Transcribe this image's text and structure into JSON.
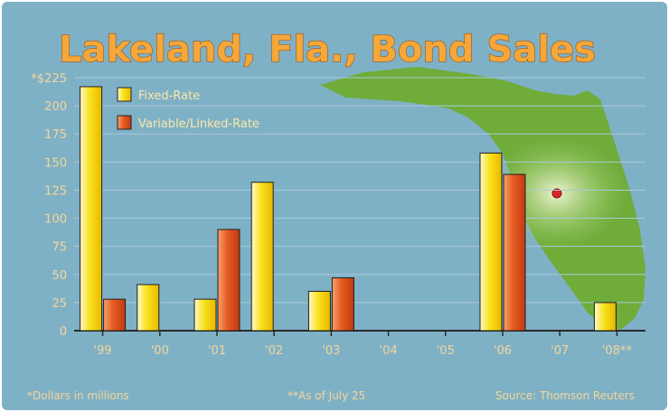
{
  "chart_data": {
    "type": "bar",
    "title": "Lakeland, Fla., Bond Sales",
    "ylabel": "*$225",
    "ylim": [
      0,
      225
    ],
    "yticks": [
      "0",
      "25",
      "50",
      "75",
      "100",
      "125",
      "150",
      "175",
      "200",
      "*$225"
    ],
    "categories": [
      "'99",
      "'00",
      "'01",
      "'02",
      "'03",
      "'04",
      "'05",
      "'06",
      "'07",
      "'08**"
    ],
    "series": [
      {
        "name": "Fixed-Rate",
        "color": "#f5d90a",
        "values": [
          217,
          41,
          28,
          132,
          35,
          0,
          0,
          158,
          0,
          25
        ]
      },
      {
        "name": "Variable/Linked-Rate",
        "color": "#e0521e",
        "values": [
          28,
          0,
          90,
          0,
          47,
          0,
          0,
          139,
          0,
          0
        ]
      }
    ],
    "grid": true,
    "legend": "top-left"
  },
  "footnotes": {
    "dollars": "*Dollars in millions",
    "asof": "**As of July 25",
    "source": "Source: Thomson Reuters"
  },
  "colors": {
    "background": "#7fb1c6",
    "gridline": "#a9cad8",
    "map_land": "#6fac3a",
    "map_dot": "#d9262b",
    "label": "#f3d69a"
  }
}
